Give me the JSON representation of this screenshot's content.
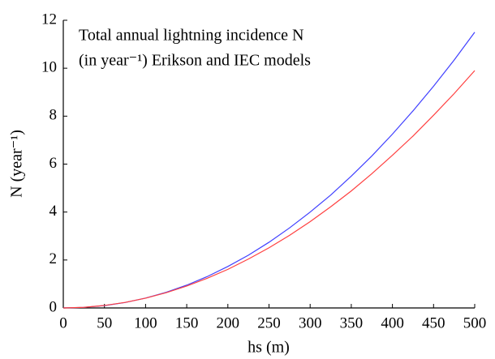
{
  "chart_data": {
    "type": "line",
    "title_lines": [
      "Total annual lightning incidence N",
      "(in year⁻¹) Erikson and IEC models"
    ],
    "x_label": "hs (m)",
    "y_label": "N (year⁻¹)",
    "x": [
      0,
      25,
      50,
      75,
      100,
      125,
      150,
      175,
      200,
      225,
      250,
      275,
      300,
      325,
      350,
      375,
      400,
      425,
      450,
      475,
      500
    ],
    "series": [
      {
        "color": "#4040ff",
        "values": [
          0,
          0.023,
          0.098,
          0.227,
          0.411,
          0.652,
          0.951,
          1.31,
          1.73,
          2.2,
          2.74,
          3.34,
          4.0,
          4.71,
          5.5,
          6.34,
          7.25,
          8.22,
          9.25,
          10.34,
          11.5
        ]
      },
      {
        "color": "#ff4040",
        "values": [
          0,
          0.026,
          0.104,
          0.231,
          0.409,
          0.637,
          0.913,
          1.24,
          1.61,
          2.04,
          2.51,
          3.03,
          3.6,
          4.22,
          4.88,
          5.6,
          6.37,
          7.17,
          8.04,
          8.94,
          9.9
        ]
      }
    ],
    "xlim": [
      0,
      500
    ],
    "xticks": [
      0,
      50,
      100,
      150,
      200,
      250,
      300,
      350,
      400,
      450,
      500
    ],
    "ylim": [
      0,
      12
    ],
    "yticks": [
      0,
      2,
      4,
      6,
      8,
      10,
      12
    ]
  }
}
